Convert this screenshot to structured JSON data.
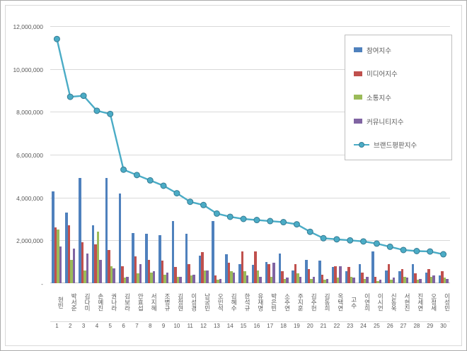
{
  "chart_data": {
    "type": "bar",
    "note": "clustered bars with overlaid marker line",
    "title": "",
    "categories": [
      "현빈",
      "박서준",
      "김다미",
      "손예진",
      "권나라",
      "김보라",
      "안효섭",
      "서지혜",
      "조병규",
      "김정현",
      "이성경",
      "남궁민",
      "오민석",
      "김혜수",
      "한석규",
      "유재명",
      "박은빈",
      "소주연",
      "주지훈",
      "김주헌",
      "김동희",
      "옥택연",
      "고수",
      "이연희",
      "이시언",
      "신동욱",
      "서현진",
      "진세연",
      "오정세",
      "이성민"
    ],
    "ranks": [
      "1",
      "2",
      "3",
      "4",
      "5",
      "6",
      "7",
      "8",
      "9",
      "10",
      "11",
      "12",
      "13",
      "14",
      "15",
      "16",
      "17",
      "18",
      "19",
      "20",
      "21",
      "22",
      "23",
      "24",
      "25",
      "26",
      "27",
      "28",
      "29",
      "30"
    ],
    "series": [
      {
        "name": "참여지수",
        "type": "bar",
        "color": "#4F81BD",
        "values": [
          4300000,
          3300000,
          4900000,
          2700000,
          4900000,
          4200000,
          2350000,
          2300000,
          2250000,
          2900000,
          2300000,
          1300000,
          2900000,
          1350000,
          900000,
          850000,
          1000000,
          1400000,
          600000,
          1100000,
          1050000,
          750000,
          550000,
          900000,
          1500000,
          600000,
          550000,
          900000,
          500000,
          350000
        ]
      },
      {
        "name": "미디어지수",
        "type": "bar",
        "color": "#C0504D",
        "values": [
          2600000,
          2700000,
          1900000,
          1800000,
          1550000,
          800000,
          1250000,
          1100000,
          1050000,
          750000,
          900000,
          1450000,
          350000,
          950000,
          1500000,
          1500000,
          900000,
          550000,
          900000,
          650000,
          400000,
          800000,
          750000,
          500000,
          300000,
          900000,
          650000,
          450000,
          650000,
          550000
        ]
      },
      {
        "name": "소통지수",
        "type": "bar",
        "color": "#9BBB59",
        "values": [
          2500000,
          1100000,
          600000,
          2400000,
          800000,
          250000,
          450000,
          500000,
          400000,
          300000,
          350000,
          600000,
          150000,
          550000,
          550000,
          600000,
          300000,
          200000,
          450000,
          200000,
          150000,
          250000,
          300000,
          200000,
          100000,
          150000,
          300000,
          150000,
          300000,
          250000
        ]
      },
      {
        "name": "커뮤니티지수",
        "type": "bar",
        "color": "#8064A2",
        "values": [
          1700000,
          1600000,
          1400000,
          1100000,
          700000,
          300000,
          900000,
          550000,
          500000,
          300000,
          400000,
          600000,
          200000,
          500000,
          350000,
          300000,
          950000,
          250000,
          300000,
          300000,
          200000,
          800000,
          250000,
          300000,
          150000,
          250000,
          250000,
          200000,
          350000,
          200000
        ]
      },
      {
        "name": "브랜드평판지수",
        "type": "line",
        "color": "#4BACC6",
        "marker_edge": "#357C94",
        "values": [
          11400000,
          8700000,
          8750000,
          8050000,
          7900000,
          5300000,
          5050000,
          4800000,
          4550000,
          4200000,
          3800000,
          3650000,
          3250000,
          3100000,
          3000000,
          2950000,
          2900000,
          2850000,
          2750000,
          2400000,
          2100000,
          2050000,
          2000000,
          1950000,
          1850000,
          1700000,
          1550000,
          1500000,
          1480000,
          1350000
        ]
      }
    ],
    "y_axis": {
      "min": 0,
      "max": 12000000,
      "step": 2000000,
      "tick_labels_bottom_up": [
        "-",
        "2,000,000",
        "4,000,000",
        "6,000,000",
        "8,000,000",
        "10,000,000",
        "12,000,000"
      ]
    },
    "legend_position": "top-right",
    "grid": true
  }
}
